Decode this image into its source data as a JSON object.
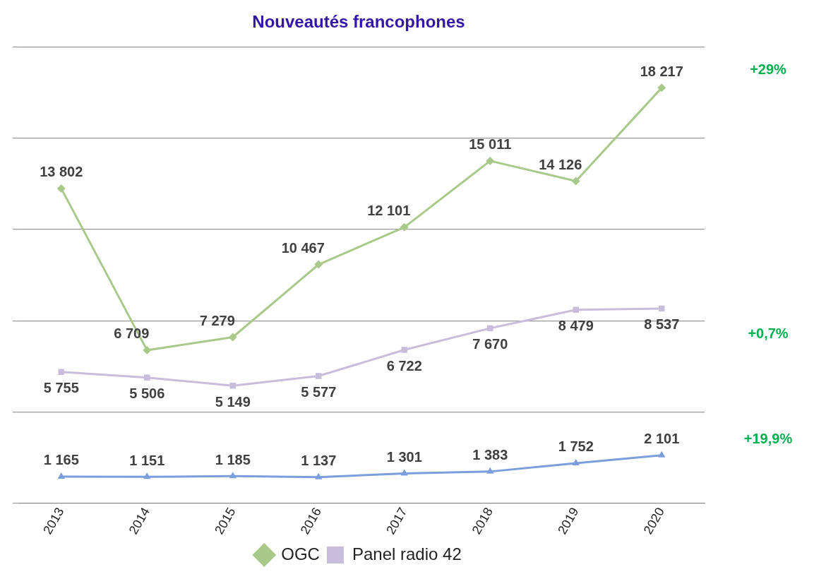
{
  "chart_data": {
    "type": "line",
    "title": "Nouveautés francophones",
    "categories": [
      "2013",
      "2014",
      "2015",
      "2016",
      "2017",
      "2018",
      "2019",
      "2020"
    ],
    "series": [
      {
        "name": "OGC",
        "color": "#a9c98a",
        "marker": "diamond",
        "values": [
          13802,
          6709,
          7279,
          10467,
          12101,
          15011,
          14126,
          18217
        ]
      },
      {
        "color": "#7b9fdc",
        "marker": "triangle",
        "values": [
          1165,
          1151,
          1185,
          1137,
          1301,
          1383,
          1752,
          2101
        ]
      },
      {
        "name": "Panel radio 42",
        "color": "#c8bedb",
        "marker": "square",
        "values": [
          5755,
          5506,
          5149,
          5577,
          6722,
          7670,
          8479,
          8537
        ]
      }
    ],
    "ylim": [
      0,
      20000
    ],
    "yticks": [
      {
        "value": 0,
        "label": null
      },
      {
        "value": 4000,
        "label": null
      },
      {
        "value": 8000,
        "label": null
      },
      {
        "value": 12000,
        "label": null
      },
      {
        "value": 16000,
        "label": null
      },
      {
        "value": 20000,
        "label": null
      }
    ],
    "grid": "y",
    "tick_labels": "x",
    "legend": "bottom",
    "data_labels": true,
    "annotations": [
      "+29%",
      "+0,7%",
      "+19,9%"
    ]
  }
}
